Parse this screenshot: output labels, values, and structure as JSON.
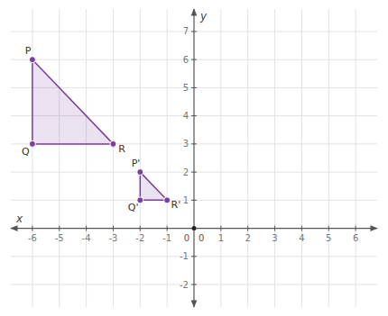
{
  "chart_data": {
    "type": "polygon",
    "xlabel": "x",
    "ylabel": "y",
    "origin_label": "0",
    "xlim": [
      -6.8,
      6.8
    ],
    "ylim": [
      -2.8,
      7.8
    ],
    "xticks": [
      -6,
      -5,
      -4,
      -3,
      -2,
      -1,
      1,
      2,
      3,
      4,
      5,
      6
    ],
    "yticks": [
      -2,
      -1,
      1,
      2,
      3,
      4,
      5,
      6,
      7
    ],
    "grid": true,
    "series": [
      {
        "x": [
          -6,
          -6,
          -3
        ],
        "values": [
          6,
          3,
          3
        ],
        "labels": [
          "P",
          "Q",
          "R"
        ],
        "color": "#7b3fa0",
        "marker": "circle"
      },
      {
        "x": [
          -2,
          -2,
          -1
        ],
        "values": [
          2,
          1,
          1
        ],
        "labels": [
          "P'",
          "Q'",
          "R'"
        ],
        "color": "#7b3fa0",
        "marker": "circle"
      }
    ]
  }
}
